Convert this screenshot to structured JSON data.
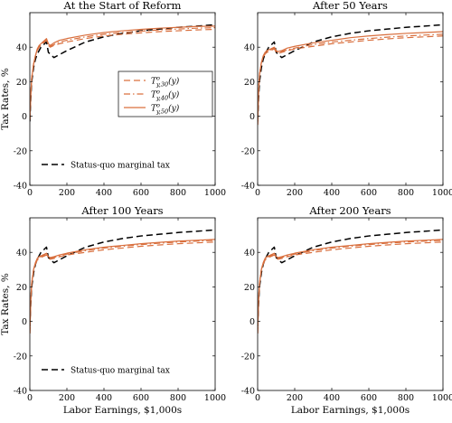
{
  "figure": {
    "shared_xlabel": "Labor Earnings, $1,000s",
    "shared_ylabel": "Tax Rates, %"
  },
  "legend_schedules": {
    "entries": [
      {
        "base": "T",
        "sup": "o",
        "sub": "y,30",
        "arg": "(y)",
        "style": "dashed",
        "color": "#d9703f"
      },
      {
        "base": "T",
        "sup": "o",
        "sub": "y,40",
        "arg": "(y)",
        "style": "dashdot",
        "color": "#d9703f"
      },
      {
        "base": "T",
        "sup": "o",
        "sub": "y,50",
        "arg": "(y)",
        "style": "solid",
        "color": "#d9703f"
      }
    ]
  },
  "legend_statusquo": {
    "label": "Status-quo marginal tax",
    "style": "dashed",
    "color": "#000000"
  },
  "chart_data": [
    {
      "type": "line",
      "title": "At the Start of Reform",
      "xlabel": "",
      "ylabel": "Tax Rates, %",
      "xlim": [
        0,
        1000
      ],
      "ylim": [
        -40,
        60
      ],
      "xticks": [
        0,
        200,
        400,
        600,
        800,
        1000
      ],
      "yticks": [
        -40,
        -20,
        0,
        20,
        40
      ],
      "grid": false,
      "legends": [
        "schedules",
        "statusquo"
      ],
      "series": [
        {
          "key": "statusquo",
          "style": "dashed",
          "color": "#000000",
          "width": 1.5,
          "x": [
            0,
            5,
            10,
            20,
            30,
            40,
            50,
            60,
            70,
            80,
            90,
            100,
            130,
            200,
            300,
            400,
            500,
            600,
            700,
            800,
            900,
            1000
          ],
          "y": [
            -3,
            10,
            20,
            28,
            33,
            36,
            38,
            40,
            41,
            42,
            43,
            37,
            34,
            38,
            43,
            46,
            48,
            49.5,
            50.5,
            51.5,
            52.2,
            53
          ]
        },
        {
          "key": "y30",
          "style": "dashed",
          "color": "#d9703f",
          "width": 1.2,
          "x": [
            0,
            5,
            10,
            20,
            30,
            40,
            50,
            60,
            70,
            80,
            90,
            100,
            110,
            130,
            160,
            200,
            300,
            400,
            500,
            600,
            700,
            800,
            900,
            1000
          ],
          "y": [
            -2,
            12,
            22,
            30,
            35,
            38,
            40,
            41,
            42,
            43,
            44,
            41,
            40,
            41,
            42,
            43,
            45,
            46.5,
            47.5,
            48.3,
            49,
            49.5,
            50,
            50.3
          ]
        },
        {
          "key": "y40",
          "style": "dashdot",
          "color": "#d9703f",
          "width": 1.2,
          "x": [
            0,
            5,
            10,
            20,
            30,
            40,
            50,
            60,
            70,
            80,
            90,
            100,
            110,
            130,
            160,
            200,
            300,
            400,
            500,
            600,
            700,
            800,
            900,
            1000
          ],
          "y": [
            -2,
            12,
            22,
            30,
            35,
            38.5,
            40.5,
            41.5,
            42.5,
            43.5,
            44.5,
            41.5,
            40.5,
            41.5,
            43,
            44,
            46,
            47.5,
            48.5,
            49.3,
            50,
            50.5,
            51,
            51.3
          ]
        },
        {
          "key": "y50",
          "style": "solid",
          "color": "#d9703f",
          "width": 1.2,
          "x": [
            0,
            5,
            10,
            20,
            30,
            40,
            50,
            60,
            70,
            80,
            90,
            100,
            110,
            130,
            160,
            200,
            300,
            400,
            500,
            600,
            700,
            800,
            900,
            1000
          ],
          "y": [
            -2,
            12,
            22,
            30,
            35,
            39,
            41,
            42,
            43,
            44,
            45,
            42,
            41,
            42.5,
            44,
            45,
            47,
            48.5,
            49.5,
            50.3,
            51,
            51.5,
            52,
            52.2
          ]
        }
      ]
    },
    {
      "type": "line",
      "title": "After 50 Years",
      "xlabel": "",
      "ylabel": "",
      "xlim": [
        0,
        1000
      ],
      "ylim": [
        -40,
        60
      ],
      "xticks": [
        0,
        200,
        400,
        600,
        800,
        1000
      ],
      "yticks": [
        -40,
        -20,
        0,
        20,
        40
      ],
      "grid": false,
      "legends": [],
      "series": [
        {
          "key": "statusquo",
          "style": "dashed",
          "color": "#000000",
          "width": 1.5,
          "x": [
            0,
            5,
            10,
            20,
            30,
            40,
            50,
            60,
            70,
            80,
            90,
            100,
            130,
            200,
            300,
            400,
            500,
            600,
            700,
            800,
            900,
            1000
          ],
          "y": [
            -3,
            10,
            20,
            28,
            33,
            36,
            38,
            40,
            41,
            42,
            43,
            37,
            34,
            38,
            43,
            46,
            48,
            49.5,
            50.5,
            51.5,
            52.2,
            53
          ]
        },
        {
          "key": "y30",
          "style": "dashed",
          "color": "#d9703f",
          "width": 1.2,
          "x": [
            0,
            5,
            10,
            20,
            30,
            40,
            50,
            60,
            70,
            80,
            90,
            100,
            110,
            130,
            160,
            200,
            300,
            400,
            500,
            600,
            700,
            800,
            900,
            1000
          ],
          "y": [
            -5,
            14,
            24,
            31,
            34,
            36,
            37,
            37.5,
            38,
            38.5,
            39,
            37,
            36.5,
            37,
            38,
            39,
            40.5,
            42,
            43,
            44,
            44.8,
            45.5,
            46,
            46.5
          ]
        },
        {
          "key": "y40",
          "style": "dashdot",
          "color": "#d9703f",
          "width": 1.2,
          "x": [
            0,
            5,
            10,
            20,
            30,
            40,
            50,
            60,
            70,
            80,
            90,
            100,
            110,
            130,
            160,
            200,
            300,
            400,
            500,
            600,
            700,
            800,
            900,
            1000
          ],
          "y": [
            -5,
            14,
            24,
            31,
            34.5,
            36.5,
            37.5,
            38,
            38.5,
            39,
            39.5,
            37.5,
            37,
            37.5,
            38.5,
            39.5,
            41.5,
            43,
            44,
            45,
            45.8,
            46.5,
            47,
            47.5
          ]
        },
        {
          "key": "y50",
          "style": "solid",
          "color": "#d9703f",
          "width": 1.2,
          "x": [
            0,
            5,
            10,
            20,
            30,
            40,
            50,
            60,
            70,
            80,
            90,
            100,
            110,
            130,
            160,
            200,
            300,
            400,
            500,
            600,
            700,
            800,
            900,
            1000
          ],
          "y": [
            -5,
            14,
            24,
            31,
            35,
            37,
            38,
            38.5,
            39,
            39.5,
            40,
            38,
            37.5,
            38,
            39.5,
            40.5,
            42.5,
            44,
            45.5,
            46.5,
            47.3,
            48,
            48.5,
            49
          ]
        }
      ]
    },
    {
      "type": "line",
      "title": "After 100 Years",
      "xlabel": "Labor Earnings, $1,000s",
      "ylabel": "Tax Rates, %",
      "xlim": [
        0,
        1000
      ],
      "ylim": [
        -40,
        60
      ],
      "xticks": [
        0,
        200,
        400,
        600,
        800,
        1000
      ],
      "yticks": [
        -40,
        -20,
        0,
        20,
        40
      ],
      "grid": false,
      "legends": [
        "statusquo"
      ],
      "series": [
        {
          "key": "statusquo",
          "style": "dashed",
          "color": "#000000",
          "width": 1.5,
          "x": [
            0,
            5,
            10,
            20,
            30,
            40,
            50,
            60,
            70,
            80,
            90,
            100,
            130,
            200,
            300,
            400,
            500,
            600,
            700,
            800,
            900,
            1000
          ],
          "y": [
            -3,
            10,
            20,
            28,
            33,
            36,
            38,
            40,
            41,
            42,
            43,
            37,
            34,
            38,
            43,
            46,
            48,
            49.5,
            50.5,
            51.5,
            52.2,
            53
          ]
        },
        {
          "key": "y30",
          "style": "dashed",
          "color": "#d9703f",
          "width": 1.2,
          "x": [
            0,
            5,
            10,
            20,
            30,
            40,
            50,
            60,
            70,
            80,
            90,
            100,
            110,
            130,
            160,
            200,
            300,
            400,
            500,
            600,
            700,
            800,
            900,
            1000
          ],
          "y": [
            -7,
            12,
            22,
            30,
            33,
            35.5,
            36.5,
            37,
            37.5,
            38,
            38.5,
            36.5,
            36,
            36.5,
            37.5,
            38.5,
            40,
            41.5,
            42.5,
            43.5,
            44.3,
            45,
            45.5,
            46
          ]
        },
        {
          "key": "y40",
          "style": "dashdot",
          "color": "#d9703f",
          "width": 1.2,
          "x": [
            0,
            5,
            10,
            20,
            30,
            40,
            50,
            60,
            70,
            80,
            90,
            100,
            110,
            130,
            160,
            200,
            300,
            400,
            500,
            600,
            700,
            800,
            900,
            1000
          ],
          "y": [
            -7,
            12,
            22,
            30,
            33.5,
            36,
            37,
            37.5,
            38,
            38.5,
            39,
            37,
            36.5,
            37,
            38,
            39,
            41,
            42.5,
            43.5,
            44.5,
            45.3,
            46,
            46.5,
            47
          ]
        },
        {
          "key": "y50",
          "style": "solid",
          "color": "#d9703f",
          "width": 1.2,
          "x": [
            0,
            5,
            10,
            20,
            30,
            40,
            50,
            60,
            70,
            80,
            90,
            100,
            110,
            130,
            160,
            200,
            300,
            400,
            500,
            600,
            700,
            800,
            900,
            1000
          ],
          "y": [
            -7,
            12,
            22,
            30,
            34,
            36.5,
            37.5,
            38,
            38.5,
            39,
            39.5,
            37.5,
            37,
            37.5,
            38.5,
            39.5,
            41.5,
            43,
            44,
            45,
            45.8,
            46.5,
            47,
            47.5
          ]
        }
      ]
    },
    {
      "type": "line",
      "title": "After 200 Years",
      "xlabel": "Labor Earnings, $1,000s",
      "ylabel": "",
      "xlim": [
        0,
        1000
      ],
      "ylim": [
        -40,
        60
      ],
      "xticks": [
        0,
        200,
        400,
        600,
        800,
        1000
      ],
      "yticks": [
        -40,
        -20,
        0,
        20,
        40
      ],
      "grid": false,
      "legends": [],
      "series": [
        {
          "key": "statusquo",
          "style": "dashed",
          "color": "#000000",
          "width": 1.5,
          "x": [
            0,
            5,
            10,
            20,
            30,
            40,
            50,
            60,
            70,
            80,
            90,
            100,
            130,
            200,
            300,
            400,
            500,
            600,
            700,
            800,
            900,
            1000
          ],
          "y": [
            -3,
            10,
            20,
            28,
            33,
            36,
            38,
            40,
            41,
            42,
            43,
            37,
            34,
            38,
            43,
            46,
            48,
            49.5,
            50.5,
            51.5,
            52.2,
            53
          ]
        },
        {
          "key": "y30",
          "style": "dashed",
          "color": "#d9703f",
          "width": 1.2,
          "x": [
            0,
            5,
            10,
            20,
            30,
            40,
            50,
            60,
            70,
            80,
            90,
            100,
            110,
            130,
            160,
            200,
            300,
            400,
            500,
            600,
            700,
            800,
            900,
            1000
          ],
          "y": [
            -7,
            12,
            22,
            30,
            33,
            35.5,
            36.5,
            37,
            37.5,
            38,
            38.5,
            36.5,
            36,
            36.5,
            37.5,
            38.5,
            40,
            41.5,
            42.5,
            43.5,
            44.3,
            45,
            45.5,
            46
          ]
        },
        {
          "key": "y40",
          "style": "dashdot",
          "color": "#d9703f",
          "width": 1.2,
          "x": [
            0,
            5,
            10,
            20,
            30,
            40,
            50,
            60,
            70,
            80,
            90,
            100,
            110,
            130,
            160,
            200,
            300,
            400,
            500,
            600,
            700,
            800,
            900,
            1000
          ],
          "y": [
            -7,
            12,
            22,
            30,
            33.5,
            36,
            37,
            37.5,
            38,
            38.5,
            39,
            37,
            36.5,
            37,
            38,
            39,
            41,
            42.5,
            43.5,
            44.5,
            45.3,
            46,
            46.5,
            47
          ]
        },
        {
          "key": "y50",
          "style": "solid",
          "color": "#d9703f",
          "width": 1.2,
          "x": [
            0,
            5,
            10,
            20,
            30,
            40,
            50,
            60,
            70,
            80,
            90,
            100,
            110,
            130,
            160,
            200,
            300,
            400,
            500,
            600,
            700,
            800,
            900,
            1000
          ],
          "y": [
            -7,
            12,
            22,
            30,
            34,
            36.5,
            37.5,
            38,
            38.5,
            39,
            39.5,
            37.5,
            37,
            37.5,
            38.5,
            39.5,
            41.5,
            43,
            44,
            45,
            45.8,
            46.5,
            47,
            47.5
          ]
        }
      ]
    }
  ]
}
